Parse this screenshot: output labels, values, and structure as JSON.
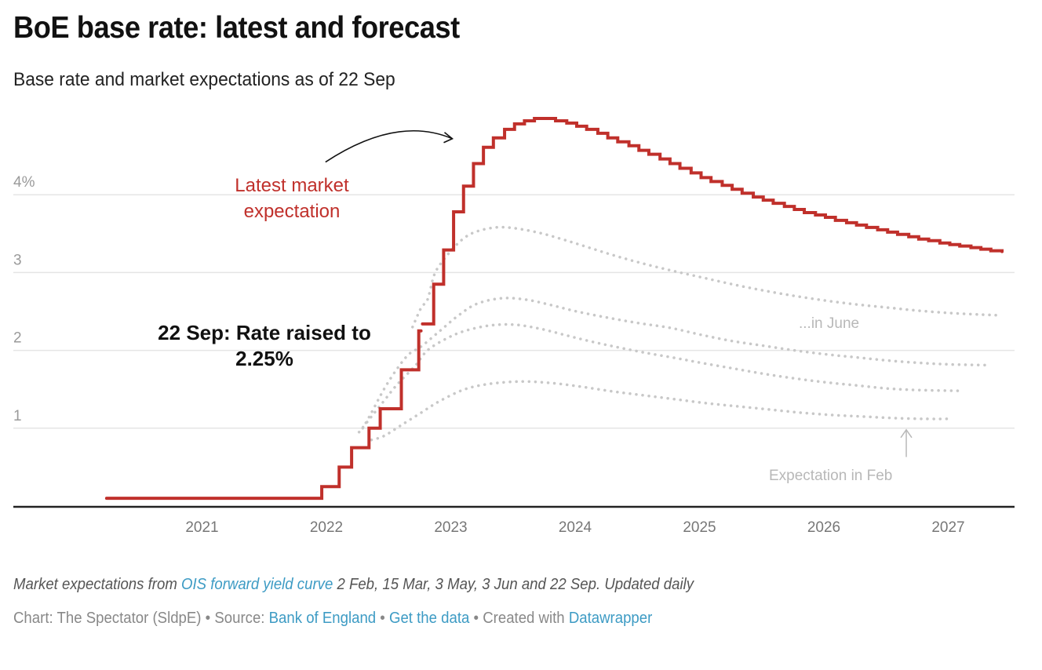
{
  "title": "BoE base rate: latest and forecast",
  "subtitle": "Base rate and market expectations as of 22 Sep",
  "notes": {
    "prefix": "Market expectations from ",
    "link_text": "OIS forward yield curve",
    "suffix": " 2 Feb, 15 Mar, 3 May, 3 Jun and 22 Sep. Updated daily"
  },
  "byline": {
    "chart_label": "Chart: The Spectator (SldpE)",
    "separator": " • ",
    "source_prefix": "Source: ",
    "source_link": "Bank of England",
    "get_data_link": "Get the data",
    "created_prefix": "Created with ",
    "created_link": "Datawrapper"
  },
  "colors": {
    "latest": "#c0302b",
    "expectations": "#c8c8c8",
    "grid": "#e5e5e5",
    "axis": "#222222",
    "tick_label": "#777777",
    "ytick_label": "#9a9a9a",
    "annotation_dark": "#111111",
    "annotation_light": "#b8b8b8",
    "link": "#3d9bc4"
  },
  "chart_data": {
    "type": "line",
    "title": "BoE base rate: latest and forecast",
    "subtitle": "Base rate and market expectations as of 22 Sep",
    "xlabel": "",
    "ylabel": "",
    "x_unit": "year",
    "xlim": [
      2019.25,
      2027.5
    ],
    "ylim": [
      0,
      5
    ],
    "x_ticks": [
      2021,
      2022,
      2023,
      2024,
      2025,
      2026,
      2027
    ],
    "x_tick_labels": [
      "2021",
      "2022",
      "2023",
      "2024",
      "2025",
      "2026",
      "2027"
    ],
    "y_ticks": [
      1,
      2,
      3,
      4
    ],
    "y_tick_labels": [
      "1",
      "2",
      "3",
      "4%"
    ],
    "grid": "horizontal",
    "series": [
      {
        "name": "Latest market expectation (22 Sep)",
        "style": "step",
        "points": [
          [
            2020.22,
            0.1
          ],
          [
            2021.95,
            0.25
          ],
          [
            2022.09,
            0.5
          ],
          [
            2022.19,
            0.75
          ],
          [
            2022.33,
            1.0
          ],
          [
            2022.42,
            1.25
          ],
          [
            2022.59,
            1.75
          ],
          [
            2022.73,
            2.25
          ],
          [
            2022.76,
            2.34
          ],
          [
            2022.85,
            2.85
          ],
          [
            2022.93,
            3.29
          ],
          [
            2023.01,
            3.78
          ],
          [
            2023.09,
            4.11
          ],
          [
            2023.17,
            4.4
          ],
          [
            2023.25,
            4.61
          ],
          [
            2023.33,
            4.73
          ],
          [
            2023.42,
            4.84
          ],
          [
            2023.5,
            4.91
          ],
          [
            2023.58,
            4.95
          ],
          [
            2023.66,
            4.98
          ],
          [
            2023.75,
            4.98
          ],
          [
            2023.83,
            4.95
          ],
          [
            2023.92,
            4.92
          ],
          [
            2024.0,
            4.88
          ],
          [
            2024.08,
            4.84
          ],
          [
            2024.17,
            4.79
          ],
          [
            2024.25,
            4.73
          ],
          [
            2024.33,
            4.68
          ],
          [
            2024.42,
            4.63
          ],
          [
            2024.5,
            4.57
          ],
          [
            2024.58,
            4.52
          ],
          [
            2024.67,
            4.46
          ],
          [
            2024.75,
            4.4
          ],
          [
            2024.83,
            4.34
          ],
          [
            2024.92,
            4.28
          ],
          [
            2025.0,
            4.22
          ],
          [
            2025.08,
            4.17
          ],
          [
            2025.17,
            4.12
          ],
          [
            2025.25,
            4.07
          ],
          [
            2025.33,
            4.02
          ],
          [
            2025.42,
            3.97
          ],
          [
            2025.5,
            3.93
          ],
          [
            2025.58,
            3.89
          ],
          [
            2025.67,
            3.85
          ],
          [
            2025.75,
            3.81
          ],
          [
            2025.83,
            3.77
          ],
          [
            2025.92,
            3.74
          ],
          [
            2026.0,
            3.71
          ],
          [
            2026.08,
            3.67
          ],
          [
            2026.17,
            3.64
          ],
          [
            2026.25,
            3.61
          ],
          [
            2026.33,
            3.58
          ],
          [
            2026.42,
            3.55
          ],
          [
            2026.5,
            3.52
          ],
          [
            2026.58,
            3.49
          ],
          [
            2026.67,
            3.46
          ],
          [
            2026.75,
            3.43
          ],
          [
            2026.83,
            3.41
          ],
          [
            2026.92,
            3.38
          ],
          [
            2027.0,
            3.36
          ],
          [
            2027.08,
            3.34
          ],
          [
            2027.17,
            3.32
          ],
          [
            2027.25,
            3.3
          ],
          [
            2027.33,
            3.28
          ],
          [
            2027.42,
            3.27
          ]
        ]
      },
      {
        "name": "Expectation in June (3 Jun)",
        "style": "dotted",
        "points": [
          [
            2022.68,
            2.3
          ],
          [
            2022.75,
            2.55
          ],
          [
            2022.8,
            2.65
          ],
          [
            2022.85,
            2.95
          ],
          [
            2022.9,
            3.1
          ],
          [
            2023.0,
            3.3
          ],
          [
            2023.1,
            3.45
          ],
          [
            2023.2,
            3.53
          ],
          [
            2023.35,
            3.58
          ],
          [
            2023.5,
            3.57
          ],
          [
            2023.7,
            3.51
          ],
          [
            2023.9,
            3.42
          ],
          [
            2024.1,
            3.32
          ],
          [
            2024.3,
            3.22
          ],
          [
            2024.5,
            3.13
          ],
          [
            2024.75,
            3.03
          ],
          [
            2025.0,
            2.94
          ],
          [
            2025.25,
            2.85
          ],
          [
            2025.5,
            2.77
          ],
          [
            2025.75,
            2.7
          ],
          [
            2026.0,
            2.64
          ],
          [
            2026.25,
            2.59
          ],
          [
            2026.5,
            2.55
          ],
          [
            2026.75,
            2.51
          ],
          [
            2027.0,
            2.48
          ],
          [
            2027.25,
            2.46
          ],
          [
            2027.42,
            2.45
          ]
        ]
      },
      {
        "name": "Expectation in May (3 May)",
        "style": "dotted",
        "points": [
          [
            2022.28,
            1.0
          ],
          [
            2022.35,
            1.2
          ],
          [
            2022.45,
            1.5
          ],
          [
            2022.55,
            1.75
          ],
          [
            2022.65,
            1.95
          ],
          [
            2022.75,
            2.05
          ],
          [
            2022.9,
            2.25
          ],
          [
            2023.05,
            2.45
          ],
          [
            2023.2,
            2.6
          ],
          [
            2023.4,
            2.67
          ],
          [
            2023.6,
            2.65
          ],
          [
            2023.8,
            2.58
          ],
          [
            2024.0,
            2.5
          ],
          [
            2024.25,
            2.42
          ],
          [
            2024.5,
            2.35
          ],
          [
            2024.75,
            2.29
          ],
          [
            2025.0,
            2.2
          ],
          [
            2025.25,
            2.12
          ],
          [
            2025.5,
            2.06
          ],
          [
            2025.75,
            2.0
          ],
          [
            2026.0,
            1.95
          ],
          [
            2026.25,
            1.91
          ],
          [
            2026.5,
            1.87
          ],
          [
            2026.75,
            1.84
          ],
          [
            2027.0,
            1.82
          ],
          [
            2027.32,
            1.81
          ]
        ]
      },
      {
        "name": "Expectation in March (15 Mar)",
        "style": "dotted",
        "points": [
          [
            2022.25,
            0.95
          ],
          [
            2022.35,
            1.15
          ],
          [
            2022.45,
            1.35
          ],
          [
            2022.55,
            1.55
          ],
          [
            2022.7,
            1.8
          ],
          [
            2022.8,
            2.0
          ],
          [
            2022.95,
            2.15
          ],
          [
            2023.1,
            2.25
          ],
          [
            2023.3,
            2.32
          ],
          [
            2023.5,
            2.33
          ],
          [
            2023.7,
            2.28
          ],
          [
            2023.9,
            2.2
          ],
          [
            2024.1,
            2.12
          ],
          [
            2024.3,
            2.05
          ],
          [
            2024.55,
            1.97
          ],
          [
            2024.8,
            1.9
          ],
          [
            2025.0,
            1.84
          ],
          [
            2025.25,
            1.77
          ],
          [
            2025.5,
            1.7
          ],
          [
            2025.75,
            1.64
          ],
          [
            2026.0,
            1.59
          ],
          [
            2026.25,
            1.55
          ],
          [
            2026.5,
            1.51
          ],
          [
            2026.75,
            1.49
          ],
          [
            2027.08,
            1.48
          ]
        ]
      },
      {
        "name": "Expectation in Feb (2 Feb)",
        "style": "dotted",
        "points": [
          [
            2022.35,
            0.85
          ],
          [
            2022.45,
            0.9
          ],
          [
            2022.6,
            1.05
          ],
          [
            2022.75,
            1.2
          ],
          [
            2022.9,
            1.35
          ],
          [
            2023.1,
            1.5
          ],
          [
            2023.3,
            1.57
          ],
          [
            2023.55,
            1.6
          ],
          [
            2023.8,
            1.58
          ],
          [
            2024.05,
            1.53
          ],
          [
            2024.3,
            1.47
          ],
          [
            2024.55,
            1.42
          ],
          [
            2024.8,
            1.37
          ],
          [
            2025.05,
            1.32
          ],
          [
            2025.3,
            1.28
          ],
          [
            2025.55,
            1.24
          ],
          [
            2025.8,
            1.2
          ],
          [
            2026.05,
            1.17
          ],
          [
            2026.3,
            1.15
          ],
          [
            2026.55,
            1.13
          ],
          [
            2026.8,
            1.12
          ],
          [
            2027.02,
            1.12
          ]
        ]
      }
    ],
    "annotations": [
      {
        "id": "latest",
        "text_lines": [
          "Latest market",
          "expectation"
        ],
        "color_key": "latest",
        "x": 2021.75,
        "y": 4.1,
        "arrow": {
          "from": [
            2021.98,
            4.42
          ],
          "to": [
            2023.0,
            4.72
          ]
        }
      },
      {
        "id": "rate-raised",
        "text_lines": [
          "22 Sep: Rate raised to",
          "2.25%"
        ],
        "color_key": "annotation_dark",
        "x": 2021.7,
        "y": 2.05,
        "bold": true
      },
      {
        "id": "june",
        "text_lines": [
          "...in June"
        ],
        "color_key": "annotation_light",
        "x": 2026.05,
        "y": 2.35
      },
      {
        "id": "feb",
        "text_lines": [
          "Expectation in Feb"
        ],
        "color_key": "annotation_light",
        "x": 2026.1,
        "y": 0.38,
        "arrow": {
          "from": [
            2026.65,
            0.63
          ],
          "to": [
            2026.65,
            0.98
          ]
        }
      }
    ]
  }
}
